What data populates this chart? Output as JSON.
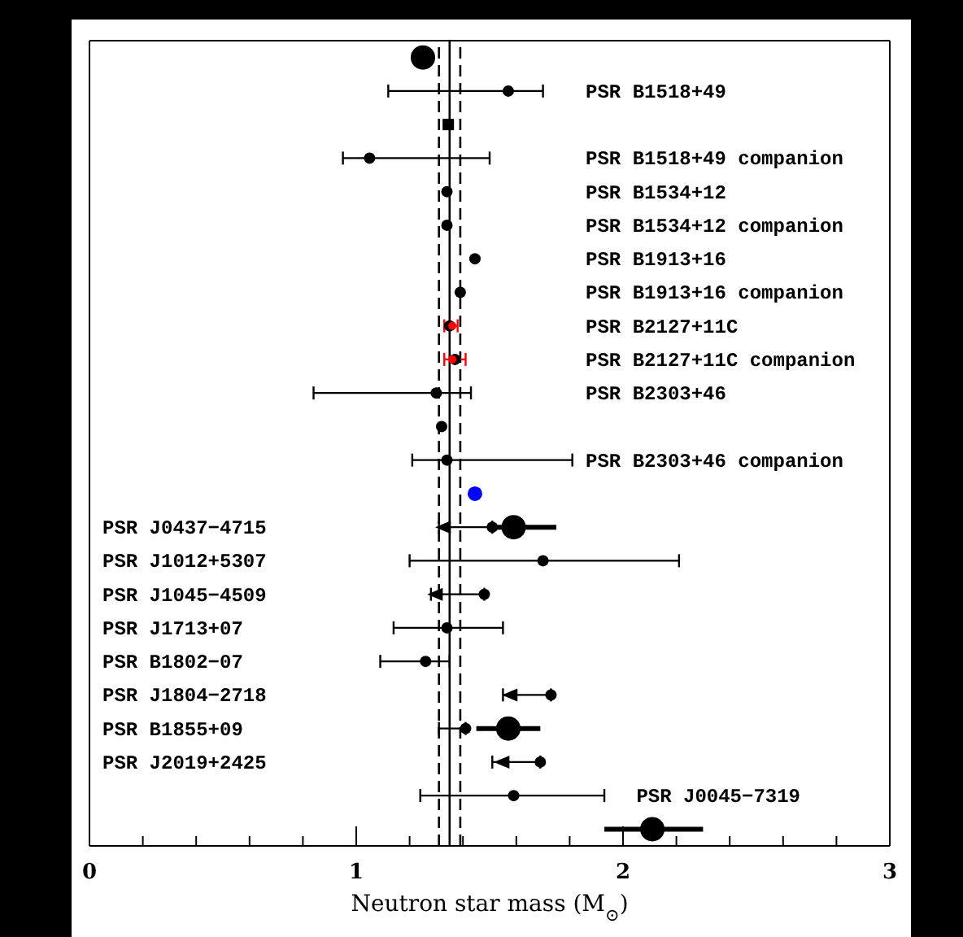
{
  "chart_data": {
    "type": "scatter",
    "orientation": "horizontal",
    "xlabel": "Neutron star mass (M$_{⊙}$)",
    "categories": [
      null,
      "PSR B1518+49",
      null,
      "PSR B1518+49 companion",
      "PSR B1534+12",
      "PSR B1534+12 companion",
      "PSR B1913+16",
      "PSR B1913+16 companion",
      "PSR B2127+11C",
      "PSR B2127+11C companion",
      "PSR B2303+46",
      null,
      "PSR B2303+46 companion",
      null,
      "PSR J0437−4715",
      "PSR J1012+5307",
      "PSR J1045−4509",
      "PSR J1713+07",
      "PSR B1802−07",
      "PSR J1804−2718",
      "PSR B1855+09",
      "PSR J2019+2425",
      "PSR J0045−7319",
      null
    ],
    "xlim": [
      0,
      3
    ],
    "xticks": [
      0,
      {
        "value": 0.2,
        "label": null
      },
      {
        "value": 0.4,
        "label": null
      },
      {
        "value": 0.6,
        "label": null
      },
      {
        "value": 0.8,
        "label": null
      },
      1,
      {
        "value": 1.2,
        "label": null
      },
      {
        "value": 1.4,
        "label": null
      },
      {
        "value": 1.6,
        "label": null
      },
      {
        "value": 1.8,
        "label": null
      },
      2,
      {
        "value": 2.2,
        "label": null
      },
      {
        "value": 2.4,
        "label": null
      },
      {
        "value": 2.6,
        "label": null
      },
      {
        "value": 2.8,
        "label": null
      },
      3
    ],
    "ref_lines": [
      {
        "axis": "x",
        "value": 1.35,
        "color": "#000000",
        "line_style": "solid"
      },
      {
        "axis": "x",
        "value": 1.31,
        "color": "#000000",
        "line_style": "dashed"
      },
      {
        "axis": "x",
        "value": 1.39,
        "color": "#000000",
        "line_style": "dashed"
      }
    ],
    "series": [
      {
        "color": "#000000",
        "marker": "circle",
        "values": [
          null,
          1.57,
          null,
          1.05,
          1.34,
          1.34,
          1.445,
          1.39,
          1.35,
          1.37,
          1.3,
          null,
          1.34,
          null,
          1.51,
          1.7,
          1.48,
          1.34,
          1.26,
          1.73,
          1.41,
          1.69,
          1.59,
          null
        ],
        "errors": [
          null,
          [
            1.12,
            1.7
          ],
          null,
          [
            0.95,
            1.5
          ],
          null,
          null,
          null,
          null,
          null,
          null,
          [
            0.84,
            1.43
          ],
          null,
          [
            1.21,
            1.81
          ],
          null,
          null,
          [
            1.2,
            2.21
          ],
          null,
          [
            1.14,
            1.55
          ],
          [
            1.09,
            1.35
          ],
          null,
          [
            1.31,
            1.41
          ],
          null,
          [
            1.24,
            1.93
          ],
          null
        ]
      },
      {
        "color": "#000000",
        "marker": "circle",
        "values": [
          1.25,
          null,
          null,
          null,
          null,
          null,
          null,
          null,
          null,
          null,
          null,
          null,
          null,
          null,
          1.59,
          null,
          null,
          null,
          null,
          null,
          1.57,
          null,
          null,
          2.11
        ],
        "errors": [
          null,
          null,
          null,
          null,
          null,
          null,
          null,
          null,
          null,
          null,
          null,
          null,
          null,
          null,
          [
            1.5,
            1.75
          ],
          null,
          null,
          null,
          null,
          null,
          [
            1.45,
            1.69
          ],
          null,
          null,
          [
            1.93,
            2.3
          ]
        ]
      },
      {
        "color": "#ff0000",
        "marker": "circle",
        "values": [
          null,
          null,
          null,
          null,
          null,
          null,
          null,
          null,
          1.36,
          1.36,
          null,
          null,
          null,
          null,
          null,
          null,
          null,
          null,
          null,
          null,
          null,
          null,
          null,
          null
        ],
        "errors": [
          null,
          null,
          null,
          null,
          null,
          null,
          null,
          null,
          [
            1.33,
            1.38
          ],
          [
            1.33,
            1.41
          ],
          null,
          null,
          null,
          null,
          null,
          null,
          null,
          null,
          null,
          null,
          null,
          null,
          null,
          null
        ]
      },
      {
        "color": "#0000ff",
        "marker": "circle",
        "values": [
          null,
          null,
          null,
          null,
          null,
          null,
          null,
          null,
          null,
          null,
          null,
          null,
          null,
          1.445,
          null,
          null,
          null,
          null,
          null,
          null,
          null,
          null,
          null,
          null
        ]
      },
      {
        "color": "#000000",
        "marker": "square",
        "values": [
          null,
          null,
          1.345,
          null,
          null,
          null,
          null,
          null,
          null,
          null,
          null,
          null,
          null,
          null,
          null,
          null,
          null,
          null,
          null,
          null,
          null,
          null,
          null,
          null
        ]
      },
      {
        "color": "#000000",
        "marker": "circle",
        "values": [
          null,
          null,
          null,
          null,
          null,
          null,
          null,
          null,
          null,
          null,
          null,
          1.32,
          null,
          null,
          null,
          null,
          null,
          null,
          null,
          null,
          null,
          null,
          null,
          null
        ]
      },
      {
        "color": "#000000",
        "marker": "triangle",
        "values": [
          null,
          null,
          null,
          null,
          null,
          null,
          null,
          null,
          null,
          null,
          null,
          null,
          null,
          null,
          1.33,
          null,
          1.3,
          null,
          null,
          1.58,
          null,
          1.55,
          null,
          null
        ],
        "errors": [
          null,
          null,
          null,
          null,
          null,
          null,
          null,
          null,
          null,
          null,
          null,
          null,
          null,
          null,
          [
            1.31,
            1.51
          ],
          null,
          [
            1.28,
            1.48
          ],
          null,
          null,
          [
            1.55,
            1.73
          ],
          null,
          [
            1.51,
            1.69
          ],
          null,
          null
        ]
      }
    ]
  }
}
